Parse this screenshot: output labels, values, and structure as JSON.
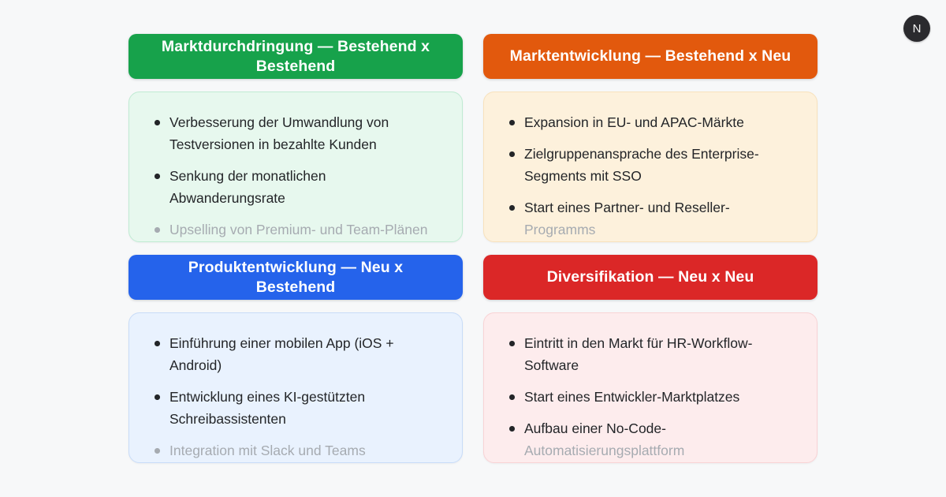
{
  "page": {
    "background_color": "#f7f8f9",
    "text_color": "#232528",
    "faded_text_color": "#a6abb1",
    "logo": {
      "letter": "N",
      "background_color": "#2a2a2e",
      "letter_color": "#f5f5f5"
    }
  },
  "quadrants": [
    {
      "id": "marktdurchdringung",
      "title": "Marktdurchdringung — Bestehend x Bestehend",
      "header_color": "#17a24b",
      "box_bg": "#e7f8ee",
      "box_border": "#c0ebd3",
      "items": [
        {
          "text": "Verbesserung der Umwandlung von Testversionen in bezahlte Kunden",
          "faded": false
        },
        {
          "text": "Senkung der monatlichen Abwanderungsrate",
          "faded": false
        },
        {
          "text": "Upselling von Premium- und Team-Plänen",
          "faded": true
        }
      ]
    },
    {
      "id": "marktentwicklung",
      "title": "Marktentwicklung — Bestehend x Neu",
      "header_color": "#e2590d",
      "box_bg": "#fdf1dc",
      "box_border": "#f8e2bd",
      "items": [
        {
          "text": "Expansion in EU- und APAC-Märkte",
          "faded": false
        },
        {
          "text": "Zielgruppenansprache des Enterprise-Segments mit SSO",
          "faded": false
        },
        {
          "text": "Start eines Partner- und Reseller-",
          "faded": false,
          "faded_suffix": "Programms"
        }
      ]
    },
    {
      "id": "produktentwicklung",
      "title": "Produktentwicklung — Neu x Bestehend",
      "header_color": "#2563eb",
      "box_bg": "#e9f2fe",
      "box_border": "#c8dcf8",
      "items": [
        {
          "text": "Einführung einer mobilen App (iOS + Android)",
          "faded": false
        },
        {
          "text": "Entwicklung eines KI-gestützten Schreibassistenten",
          "faded": false
        },
        {
          "text": "Integration mit Slack und Teams",
          "faded": true
        }
      ]
    },
    {
      "id": "diversifikation",
      "title": "Diversifikation — Neu x Neu",
      "header_color": "#db2727",
      "box_bg": "#fdeced",
      "box_border": "#f9d3d5",
      "items": [
        {
          "text": "Eintritt in den Markt für HR-Workflow-Software",
          "faded": false
        },
        {
          "text": "Start eines Entwickler-Marktplatzes",
          "faded": false
        },
        {
          "text": "Aufbau einer No-Code-",
          "faded": false,
          "faded_suffix": "Automatisierungsplattform"
        }
      ]
    }
  ]
}
